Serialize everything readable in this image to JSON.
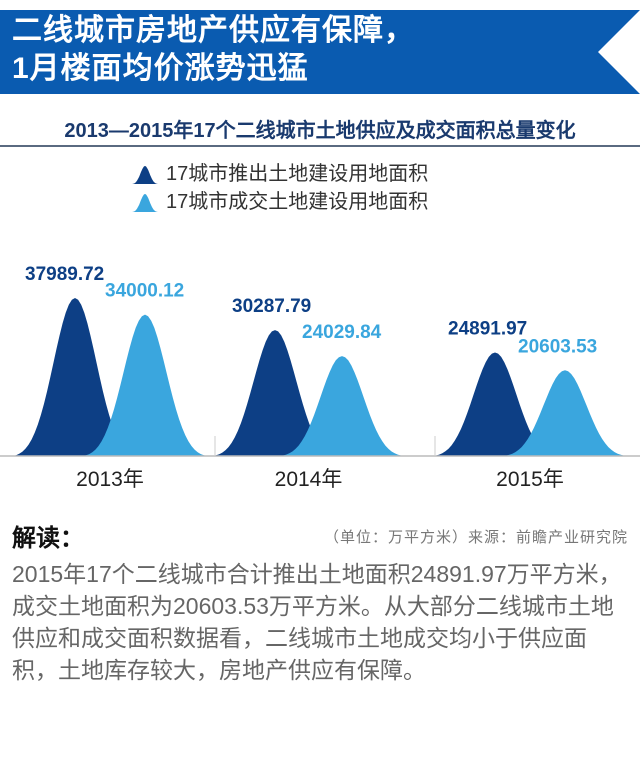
{
  "header": {
    "title_line1": "二线城市房地产供应有保障，",
    "title_line2": "1月楼面均价涨势迅猛",
    "banner_color": "#0a5bb0"
  },
  "chart_data": {
    "type": "area",
    "title": "2013—2015年17个二线城市土地供应及成交面积总量变化",
    "categories": [
      "2013年",
      "2014年",
      "2015年"
    ],
    "series": [
      {
        "name": "17城市推出土地建设用地面积",
        "values": [
          37989.72,
          30287.79,
          24891.97
        ],
        "color": "#0d3f85",
        "labels": [
          "37989.72",
          "30287.79",
          "24891.97"
        ]
      },
      {
        "name": "17城市成交土地建设用地面积",
        "values": [
          34000.12,
          24029.84,
          20603.53
        ],
        "color": "#3aa6de",
        "labels": [
          "34000.12",
          "24029.84",
          "20603.53"
        ]
      }
    ],
    "legend": "top-center"
  },
  "footer": {
    "heading": "解读：",
    "source": "（单位：万平方米）来源：前瞻产业研究院",
    "text": "2015年17个二线城市合计推出土地面积24891.97万平方米，成交土地面积为20603.53万平方米。从大部分二线城市土地供应和成交面积数据看，二线城市土地成交均小于供应面积，土地库存较大，房地产供应有保障。"
  }
}
